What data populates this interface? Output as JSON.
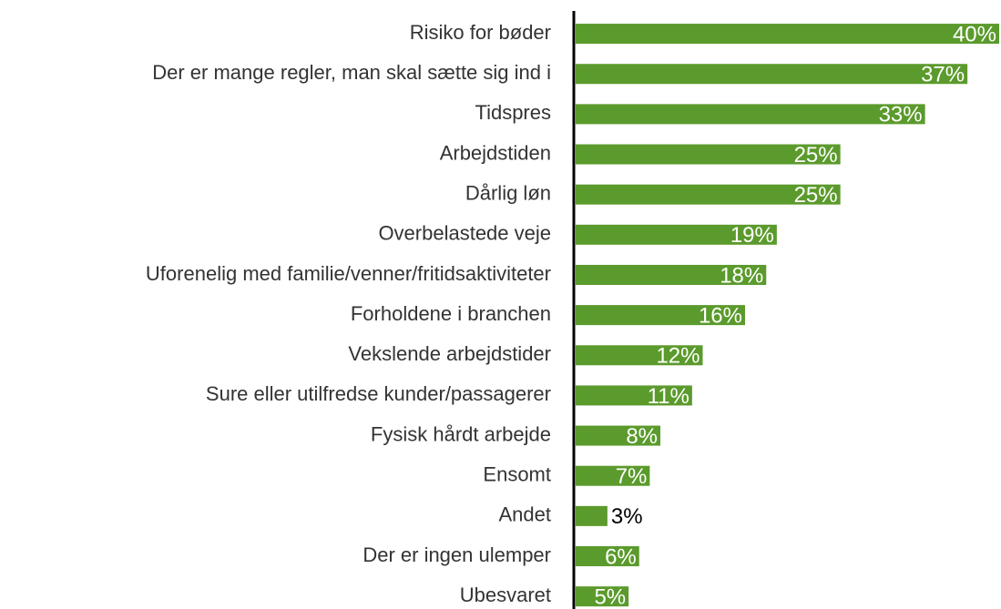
{
  "chart_data": {
    "type": "bar",
    "orientation": "horizontal",
    "color": "#5b9a2c",
    "categories": [
      "Risiko for bøder",
      "Der er mange regler, man skal sætte sig ind i",
      "Tidspres",
      "Arbejdstiden",
      "Dårlig løn",
      "Overbelastede veje",
      "Uforenelig med familie/venner/fritidsaktiviteter",
      "Forholdene i branchen",
      "Vekslende arbejdstider",
      "Sure eller utilfredse kunder/passagerer",
      "Fysisk hårdt arbejde",
      "Ensomt",
      "Andet",
      "Der er ingen ulemper",
      "Ubesvaret"
    ],
    "values": [
      40,
      37,
      33,
      25,
      25,
      19,
      18,
      16,
      12,
      11,
      8,
      7,
      3,
      6,
      5
    ],
    "value_labels": [
      "40%",
      "37%",
      "33%",
      "25%",
      "25%",
      "19%",
      "18%",
      "16%",
      "12%",
      "11%",
      "8%",
      "7%",
      "3%",
      "6%",
      "5%"
    ]
  }
}
